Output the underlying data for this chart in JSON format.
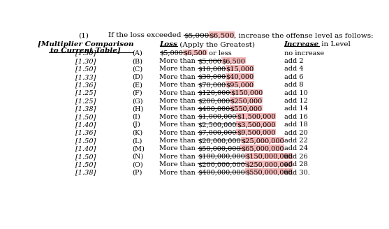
{
  "title_number": "(1)",
  "title_text_plain": "If the loss exceeded ",
  "title_strikethrough": "$5,000",
  "title_highlight": "$6,500",
  "title_suffix": ", increase the offense level as follows:",
  "col1_header_line1": "[Multiplier Comparison",
  "col1_header_line2": "to Current Table]",
  "col2_header_italic": "Loss",
  "col2_header_plain": " (Apply the Greatest)",
  "col3_header_italic": "Increase",
  "col3_header_plain": " in Level",
  "multipliers": [
    "[1.30]",
    "[1.30]",
    "[1.50]",
    "[1.33]",
    "[1.36]",
    "[1.25]",
    "[1.25]",
    "[1.38]",
    "[1.50]",
    "[1.40]",
    "[1.36]",
    "[1.50]",
    "[1.40]",
    "[1.50]",
    "[1.50]",
    "[1.38]"
  ],
  "letters": [
    "(A)",
    "(B)",
    "(C)",
    "(D)",
    "(E)",
    "(F)",
    "(G)",
    "(H)",
    "(I)",
    "(J)",
    "(K)",
    "(L)",
    "(M)",
    "(N)",
    "(O)",
    "(P)"
  ],
  "loss_struck": [
    "$5,000",
    "$5,000",
    "$10,000",
    "$30,000",
    "$70,000",
    "$120,000",
    "$200,000",
    "$400,000",
    "$1,000,000",
    "$2,500,000",
    "$7,000,000",
    "$20,000,000",
    "$50,000,000",
    "$100,000,000",
    "$200,000,000",
    "$400,000,000"
  ],
  "loss_highlighted": [
    "$6,500",
    "$6,500",
    "$15,000",
    "$40,000",
    "$95,000",
    "$150,000",
    "$250,000",
    "$550,000",
    "$1,500,000",
    "$3,500,000",
    "$9,500,000",
    "$25,000,000",
    "$65,000,000",
    "$150,000,000",
    "$250,000,000",
    "$550,000,000"
  ],
  "loss_suffix": [
    " or less",
    "",
    "",
    "",
    "",
    "",
    "",
    "",
    "",
    "",
    "",
    "",
    "",
    "",
    "",
    ""
  ],
  "loss_prefix_text": [
    "",
    "More than ",
    "More than ",
    "More than ",
    "More than ",
    "More than ",
    "More than ",
    "More than ",
    "More than ",
    "More than ",
    "More than ",
    "More than ",
    "More than ",
    "More than ",
    "More than ",
    "More than "
  ],
  "increase": [
    "no increase",
    "add 2",
    "add 4",
    "add 6",
    "add 8",
    "add 10",
    "add 12",
    "add 14",
    "add 16",
    "add 18",
    "add 20",
    "add 22",
    "add 24",
    "add 26",
    "add 28",
    "add 30."
  ],
  "highlight_color": "#f4b8b8",
  "bg_color": "#ffffff",
  "text_color": "#000000",
  "font_size": 7.0,
  "header_font_size": 7.5,
  "title_font_size": 7.5
}
